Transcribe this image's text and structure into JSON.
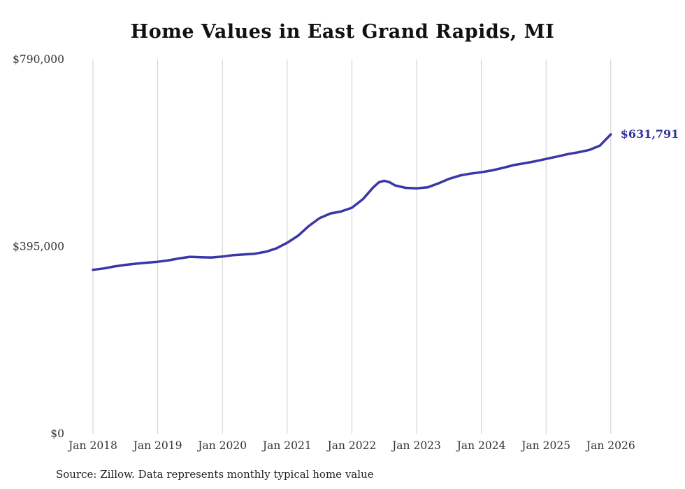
{
  "chart_data": {
    "type": "line",
    "title": "Home Values in East Grand Rapids, MI",
    "source_note": "Source: Zillow. Data represents monthly typical home value",
    "end_label": "$631,791",
    "line_color": "#3b36a8",
    "end_label_color": "#32329e",
    "grid": "vertical-only",
    "legend_position": "none",
    "xlim": [
      2018,
      2026
    ],
    "ylim": [
      0,
      790000
    ],
    "x_ticks": {
      "values": [
        2018,
        2019,
        2020,
        2021,
        2022,
        2023,
        2024,
        2025,
        2026
      ],
      "labels": [
        "Jan 2018",
        "Jan 2019",
        "Jan 2020",
        "Jan 2021",
        "Jan 2022",
        "Jan 2023",
        "Jan 2024",
        "Jan 2025",
        "Jan 2026"
      ]
    },
    "y_ticks": {
      "values": [
        0,
        395000,
        790000
      ],
      "labels": [
        "$0",
        "$395,000",
        "$790,000"
      ]
    },
    "series": [
      {
        "name": "Monthly typical home value",
        "x": [
          2018.0,
          2018.17,
          2018.33,
          2018.5,
          2018.67,
          2018.83,
          2019.0,
          2019.17,
          2019.33,
          2019.5,
          2019.67,
          2019.83,
          2020.0,
          2020.17,
          2020.33,
          2020.5,
          2020.67,
          2020.83,
          2021.0,
          2021.17,
          2021.33,
          2021.5,
          2021.67,
          2021.83,
          2022.0,
          2022.17,
          2022.33,
          2022.42,
          2022.5,
          2022.58,
          2022.67,
          2022.83,
          2023.0,
          2023.17,
          2023.33,
          2023.5,
          2023.67,
          2023.83,
          2024.0,
          2024.17,
          2024.33,
          2024.5,
          2024.67,
          2024.83,
          2025.0,
          2025.17,
          2025.33,
          2025.5,
          2025.67,
          2025.83,
          2026.0
        ],
        "values": [
          346000,
          349000,
          353000,
          356500,
          359000,
          361000,
          363000,
          366000,
          370000,
          373500,
          372500,
          372000,
          374000,
          377000,
          378500,
          380000,
          384000,
          391000,
          403000,
          418000,
          438000,
          455000,
          465000,
          469000,
          477000,
          495000,
          520000,
          531000,
          534000,
          531000,
          524000,
          519000,
          518000,
          520000,
          528000,
          538000,
          545000,
          549000,
          552000,
          556000,
          561000,
          567000,
          571000,
          575000,
          580000,
          585000,
          590000,
          594000,
          599000,
          608000,
          631791
        ]
      }
    ]
  }
}
